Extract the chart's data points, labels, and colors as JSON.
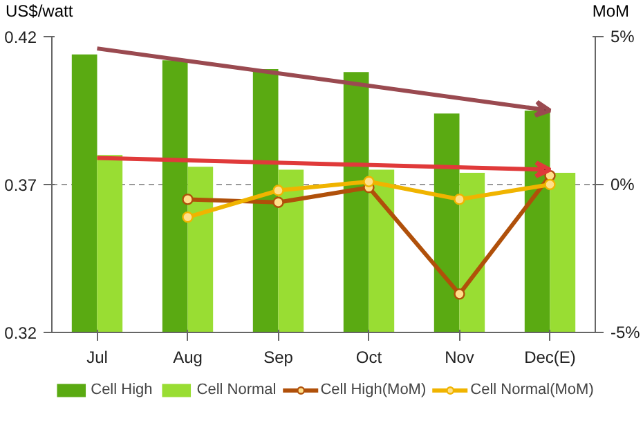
{
  "chart_data": {
    "type": "bar",
    "ylabel": "US$/watt",
    "y2label": "MoM",
    "categories": [
      "Jul",
      "Aug",
      "Sep",
      "Oct",
      "Nov",
      "Dec(E)"
    ],
    "series": [
      {
        "name": "Cell High",
        "color": "#5aaa12",
        "values": [
          0.414,
          0.412,
          0.409,
          0.408,
          0.394,
          0.395
        ]
      },
      {
        "name": "Cell Normal",
        "color": "#99dd33",
        "values": [
          0.38,
          0.376,
          0.375,
          0.375,
          0.374,
          0.374
        ]
      },
      {
        "name": "Cell High(MoM)",
        "type": "line",
        "axis": "y2",
        "color": "#b0500a",
        "values": [
          null,
          -0.5,
          -0.6,
          -0.1,
          -3.7,
          0.3
        ]
      },
      {
        "name": "Cell Normal(MoM)",
        "type": "line",
        "axis": "y2",
        "color": "#f0b400",
        "values": [
          null,
          -1.1,
          -0.2,
          0.1,
          -0.5,
          0.0
        ]
      }
    ],
    "ylim": [
      0.32,
      0.42
    ],
    "yticks": [
      0.32,
      0.37,
      0.42
    ],
    "y2lim": [
      -5,
      5
    ],
    "y2ticks": [
      {
        "value": -5,
        "label": "-5%"
      },
      {
        "value": 0,
        "label": "0%"
      },
      {
        "value": 5,
        "label": "5%"
      }
    ],
    "grid": "y",
    "legend": "bottom",
    "marker": "circle",
    "line_style": "solid"
  }
}
